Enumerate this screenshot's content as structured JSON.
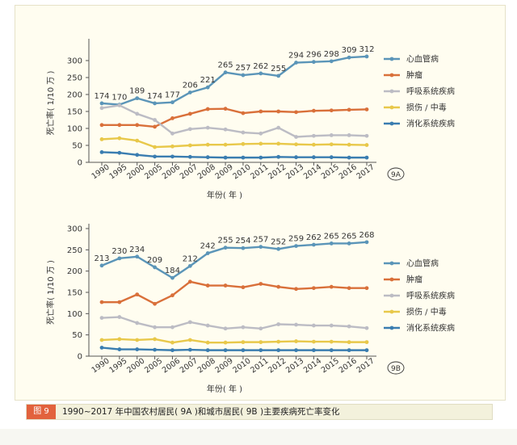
{
  "caption": {
    "tag": "图 9",
    "text": "1990~2017 年中国农村居民( 9A )和城市居民( 9B )主要疾病死亡率变化"
  },
  "chart_data": [
    {
      "id": "9A",
      "type": "line",
      "panel_label": "9A",
      "ylabel": "死亡率( 1/10 万 )",
      "xlabel": "年份( 年 )",
      "ylim": [
        0,
        350
      ],
      "yticks": [
        0,
        50,
        100,
        150,
        200,
        250,
        300
      ],
      "grid": false,
      "legend": "right",
      "categories": [
        "1990",
        "1995",
        "2000",
        "2005",
        "2006",
        "2007",
        "2008",
        "2009",
        "2010",
        "2011",
        "2012",
        "2013",
        "2014",
        "2015",
        "2016",
        "2017"
      ],
      "series": [
        {
          "name": "心血管病",
          "color": "#5b95b8",
          "labeled": true,
          "values": [
            174,
            170,
            189,
            174,
            177,
            206,
            221,
            265,
            257,
            262,
            255,
            294,
            296,
            298,
            309,
            312
          ]
        },
        {
          "name": "肿瘤",
          "color": "#d9703a",
          "labeled": false,
          "values": [
            110,
            110,
            110,
            105,
            130,
            143,
            157,
            158,
            145,
            150,
            150,
            148,
            152,
            153,
            155,
            156
          ]
        },
        {
          "name": "呼吸系统疾病",
          "color": "#bcbcc4",
          "labeled": false,
          "values": [
            160,
            168,
            143,
            125,
            85,
            98,
            102,
            97,
            88,
            85,
            102,
            75,
            78,
            80,
            80,
            78
          ]
        },
        {
          "name": "损伤 / 中毒",
          "color": "#e8c84a",
          "labeled": false,
          "values": [
            68,
            71,
            64,
            45,
            47,
            50,
            52,
            52,
            54,
            55,
            55,
            53,
            52,
            53,
            52,
            51
          ]
        },
        {
          "name": "消化系统疾病",
          "color": "#3a7db0",
          "labeled": false,
          "values": [
            30,
            28,
            22,
            17,
            17,
            16,
            15,
            14,
            14,
            14,
            16,
            15,
            15,
            15,
            14,
            14
          ]
        }
      ]
    },
    {
      "id": "9B",
      "type": "line",
      "panel_label": "9B",
      "ylabel": "死亡率( 1/10 万 )",
      "xlabel": "年份( 年 )",
      "ylim": [
        0,
        300
      ],
      "yticks": [
        0,
        50,
        100,
        150,
        200,
        250,
        300
      ],
      "grid": false,
      "legend": "right",
      "categories": [
        "1990",
        "1995",
        "2000",
        "2005",
        "2006",
        "2007",
        "2008",
        "2009",
        "2010",
        "2011",
        "2012",
        "2013",
        "2014",
        "2015",
        "2016",
        "2017"
      ],
      "series": [
        {
          "name": "心血管病",
          "color": "#5b95b8",
          "labeled": true,
          "values": [
            213,
            230,
            234,
            209,
            184,
            212,
            242,
            255,
            254,
            257,
            252,
            259,
            262,
            265,
            265,
            268
          ]
        },
        {
          "name": "肿瘤",
          "color": "#d9703a",
          "labeled": false,
          "values": [
            127,
            127,
            145,
            123,
            143,
            175,
            166,
            166,
            162,
            170,
            163,
            158,
            160,
            163,
            160,
            160
          ]
        },
        {
          "name": "呼吸系统疾病",
          "color": "#bcbcc4",
          "labeled": false,
          "values": [
            90,
            92,
            78,
            68,
            68,
            80,
            72,
            65,
            68,
            65,
            75,
            74,
            72,
            72,
            70,
            66
          ]
        },
        {
          "name": "损伤 / 中毒",
          "color": "#e8c84a",
          "labeled": false,
          "values": [
            38,
            40,
            38,
            40,
            32,
            38,
            32,
            32,
            33,
            33,
            34,
            35,
            34,
            34,
            33,
            33
          ]
        },
        {
          "name": "消化系统疾病",
          "color": "#3a7db0",
          "labeled": false,
          "values": [
            20,
            16,
            16,
            15,
            14,
            15,
            14,
            14,
            14,
            14,
            14,
            14,
            14,
            14,
            14,
            14
          ]
        }
      ]
    }
  ]
}
